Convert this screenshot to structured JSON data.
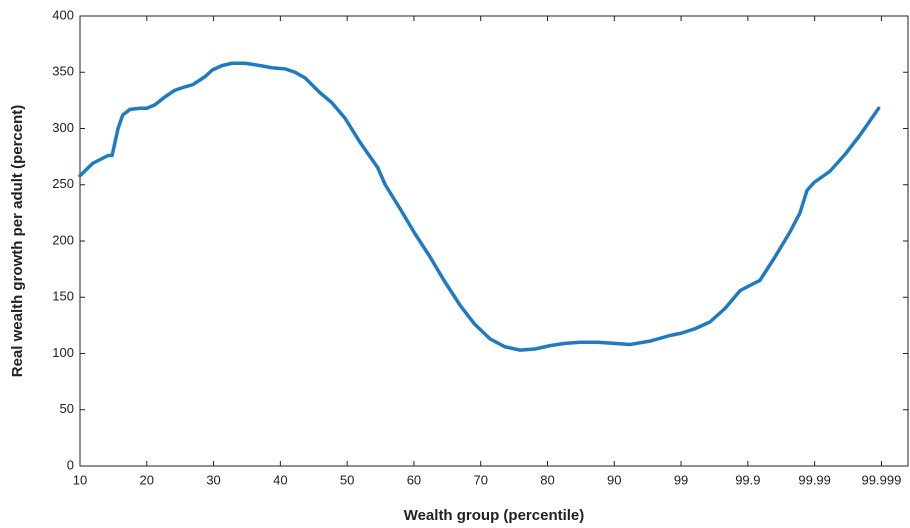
{
  "chart_data": {
    "type": "line",
    "xlabel": "Wealth group (percentile)",
    "ylabel": "Real wealth growth per adult (percent)",
    "xscale": "percentile-tail",
    "xlim": [
      10,
      99.9996
    ],
    "xticks": [
      10,
      20,
      30,
      40,
      50,
      60,
      70,
      80,
      90,
      99,
      99.9,
      99.99,
      99.999
    ],
    "ylim": [
      0,
      400
    ],
    "yticks": [
      0,
      50,
      100,
      150,
      200,
      250,
      300,
      350,
      400
    ],
    "series": [
      {
        "color": "#1f7bc1",
        "x": [
          10,
          11.9,
          14.2,
          14.8,
          15.7,
          16.4,
          17.5,
          19,
          20,
          21.2,
          22.7,
          24.2,
          25.7,
          26.9,
          28.7,
          29.8,
          31.3,
          32.8,
          34.7,
          36.9,
          38.7,
          40.7,
          42.2,
          43.7,
          45.9,
          47.7,
          49.7,
          51.9,
          54.6,
          55.7,
          57.9,
          60.1,
          62.4,
          64.6,
          66.9,
          69.1,
          71.4,
          73.6,
          75.9,
          78.1,
          80.4,
          82.6,
          84.9,
          87.5,
          90,
          94.17,
          97.07,
          98.53,
          99,
          99.38,
          99.63,
          99.78,
          99.87,
          99.934,
          99.96,
          99.9766,
          99.9834,
          99.987,
          99.9898,
          99.9941,
          99.9965,
          99.9979,
          99.9989
        ],
        "values": [
          258,
          269,
          276,
          276,
          300,
          312,
          317,
          318,
          318,
          321,
          328,
          334,
          337,
          339,
          346,
          352,
          356,
          358,
          358,
          356,
          354,
          353,
          350,
          345,
          332,
          323,
          309,
          288,
          265,
          250,
          229,
          207,
          186,
          164,
          143,
          126,
          113,
          106,
          103,
          104,
          107,
          109,
          110,
          110,
          109,
          108,
          111,
          116,
          118,
          122,
          128,
          140,
          156,
          165,
          185,
          208,
          225,
          245,
          252,
          262,
          277,
          294,
          318
        ]
      }
    ]
  }
}
